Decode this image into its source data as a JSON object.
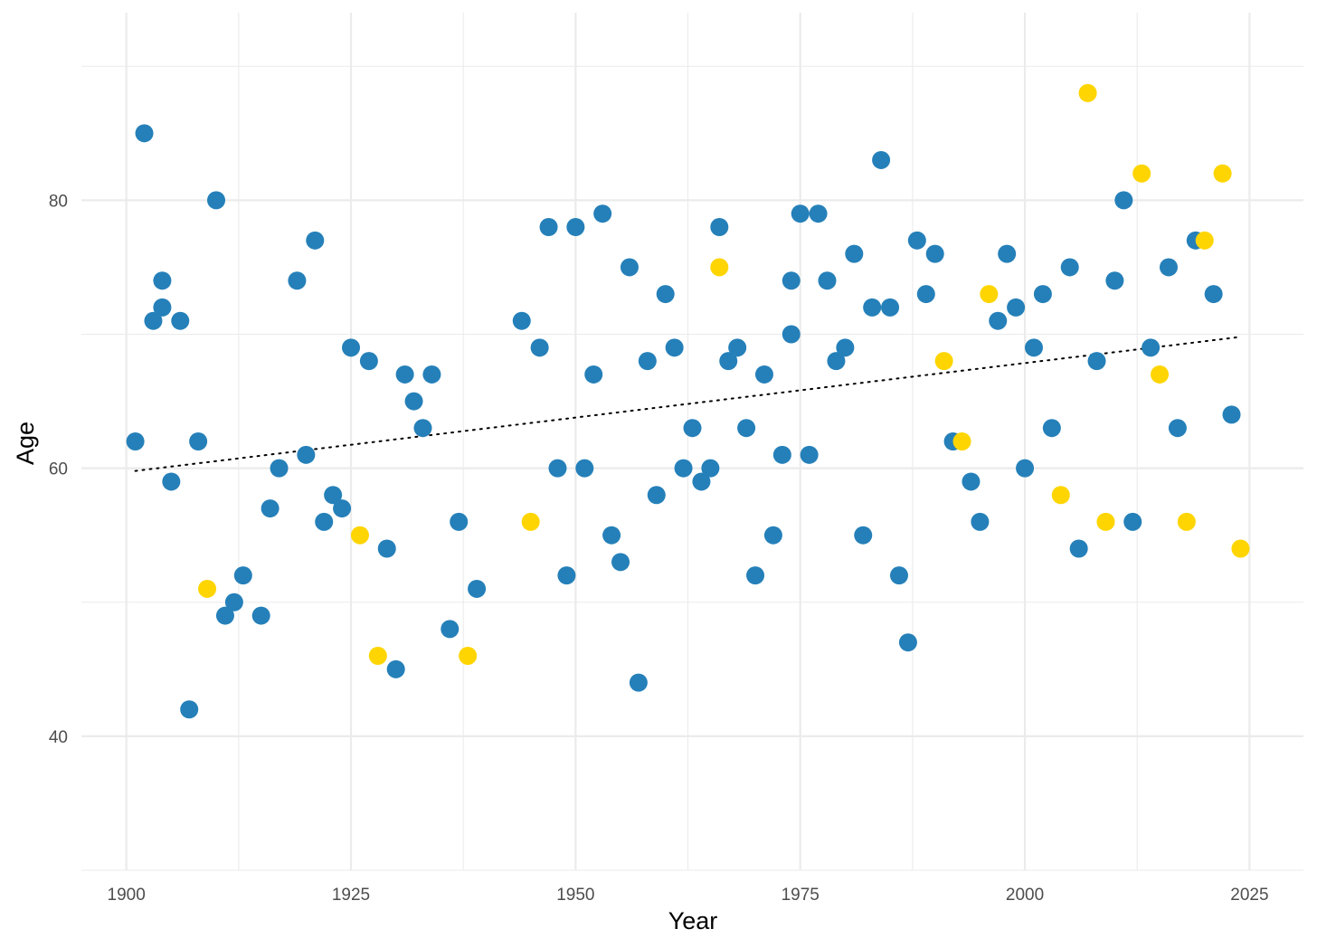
{
  "chart_data": {
    "type": "scatter",
    "title": "",
    "xlabel": "Year",
    "ylabel": "Age",
    "xlim": [
      1895,
      2031
    ],
    "ylim": [
      30,
      94
    ],
    "x_ticks": [
      1900,
      1925,
      1950,
      1975,
      2000,
      2025
    ],
    "y_ticks": [
      40,
      60,
      80
    ],
    "grid": true,
    "legend": "none",
    "colors": {
      "group_a": "#2580b9",
      "group_b": "#fed500",
      "grid": "#ebebeb",
      "trend": "#000000"
    },
    "trend": {
      "style": "dotted",
      "x": [
        1901,
        2024
      ],
      "y": [
        59.8,
        69.8
      ]
    },
    "series": [
      {
        "color": "#2580b9",
        "points": [
          [
            1901,
            62
          ],
          [
            1902,
            85
          ],
          [
            1903,
            71
          ],
          [
            1904,
            74
          ],
          [
            1904,
            72
          ],
          [
            1905,
            59
          ],
          [
            1906,
            71
          ],
          [
            1907,
            42
          ],
          [
            1908,
            62
          ],
          [
            1910,
            80
          ],
          [
            1911,
            49
          ],
          [
            1912,
            50
          ],
          [
            1913,
            52
          ],
          [
            1915,
            49
          ],
          [
            1916,
            57
          ],
          [
            1917,
            60
          ],
          [
            1919,
            74
          ],
          [
            1920,
            61
          ],
          [
            1921,
            77
          ],
          [
            1922,
            56
          ],
          [
            1923,
            58
          ],
          [
            1924,
            57
          ],
          [
            1925,
            69
          ],
          [
            1927,
            68
          ],
          [
            1929,
            54
          ],
          [
            1930,
            45
          ],
          [
            1931,
            67
          ],
          [
            1932,
            65
          ],
          [
            1933,
            63
          ],
          [
            1934,
            67
          ],
          [
            1936,
            48
          ],
          [
            1937,
            56
          ],
          [
            1939,
            51
          ],
          [
            1944,
            71
          ],
          [
            1946,
            69
          ],
          [
            1947,
            78
          ],
          [
            1948,
            60
          ],
          [
            1949,
            52
          ],
          [
            1950,
            78
          ],
          [
            1951,
            60
          ],
          [
            1952,
            67
          ],
          [
            1953,
            79
          ],
          [
            1954,
            55
          ],
          [
            1955,
            53
          ],
          [
            1956,
            75
          ],
          [
            1957,
            44
          ],
          [
            1958,
            68
          ],
          [
            1959,
            58
          ],
          [
            1960,
            73
          ],
          [
            1961,
            69
          ],
          [
            1962,
            60
          ],
          [
            1963,
            63
          ],
          [
            1964,
            59
          ],
          [
            1965,
            60
          ],
          [
            1966,
            78
          ],
          [
            1967,
            68
          ],
          [
            1968,
            69
          ],
          [
            1969,
            63
          ],
          [
            1970,
            52
          ],
          [
            1971,
            67
          ],
          [
            1972,
            55
          ],
          [
            1973,
            61
          ],
          [
            1974,
            74
          ],
          [
            1974,
            70
          ],
          [
            1975,
            79
          ],
          [
            1976,
            61
          ],
          [
            1977,
            79
          ],
          [
            1978,
            74
          ],
          [
            1979,
            68
          ],
          [
            1980,
            69
          ],
          [
            1981,
            76
          ],
          [
            1982,
            55
          ],
          [
            1983,
            72
          ],
          [
            1984,
            83
          ],
          [
            1985,
            72
          ],
          [
            1986,
            52
          ],
          [
            1987,
            47
          ],
          [
            1988,
            77
          ],
          [
            1989,
            73
          ],
          [
            1990,
            76
          ],
          [
            1992,
            62
          ],
          [
            1994,
            59
          ],
          [
            1995,
            56
          ],
          [
            1997,
            71
          ],
          [
            1998,
            76
          ],
          [
            1999,
            72
          ],
          [
            2000,
            60
          ],
          [
            2001,
            69
          ],
          [
            2002,
            73
          ],
          [
            2003,
            63
          ],
          [
            2005,
            75
          ],
          [
            2006,
            54
          ],
          [
            2008,
            68
          ],
          [
            2010,
            74
          ],
          [
            2011,
            80
          ],
          [
            2012,
            56
          ],
          [
            2014,
            69
          ],
          [
            2016,
            75
          ],
          [
            2017,
            63
          ],
          [
            2019,
            77
          ],
          [
            2021,
            73
          ],
          [
            2023,
            64
          ]
        ]
      },
      {
        "color": "#fed500",
        "points": [
          [
            1909,
            51
          ],
          [
            1926,
            55
          ],
          [
            1928,
            46
          ],
          [
            1938,
            46
          ],
          [
            1945,
            56
          ],
          [
            1966,
            75
          ],
          [
            1991,
            68
          ],
          [
            1993,
            62
          ],
          [
            1996,
            73
          ],
          [
            2004,
            58
          ],
          [
            2007,
            88
          ],
          [
            2009,
            56
          ],
          [
            2013,
            82
          ],
          [
            2015,
            67
          ],
          [
            2018,
            56
          ],
          [
            2020,
            77
          ],
          [
            2022,
            82
          ],
          [
            2024,
            54
          ]
        ]
      }
    ]
  }
}
